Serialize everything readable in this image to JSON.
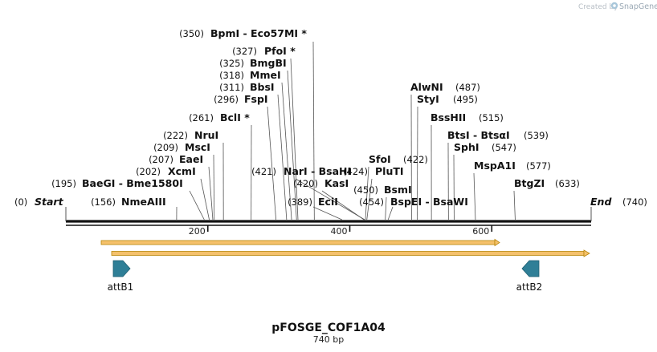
{
  "credit": {
    "prefix": "Created by",
    "brand": "SnapGene"
  },
  "sequence": {
    "name": "pFOSGE_COF1A04",
    "length_label": "740 bp",
    "length": 740
  },
  "ruler": [
    {
      "pos": 200,
      "label": "200"
    },
    {
      "pos": 400,
      "label": "400"
    },
    {
      "pos": 600,
      "label": "600"
    }
  ],
  "ends": {
    "start": {
      "pos_label": "(0)",
      "label": "Start"
    },
    "end": {
      "pos_label": "(740)",
      "label": "End"
    }
  },
  "sites": [
    {
      "pos": 350,
      "pos_label": "(350)",
      "label": "BpmI  - Eco57MI *"
    },
    {
      "pos": 327,
      "pos_label": "(327)",
      "label": "PfoI *"
    },
    {
      "pos": 325,
      "pos_label": "(325)",
      "label": "BmgBI"
    },
    {
      "pos": 318,
      "pos_label": "(318)",
      "label": "MmeI"
    },
    {
      "pos": 311,
      "pos_label": "(311)",
      "label": "BbsI"
    },
    {
      "pos": 296,
      "pos_label": "(296)",
      "label": "FspI"
    },
    {
      "pos": 261,
      "pos_label": "(261)",
      "label": "BclI *"
    },
    {
      "pos": 222,
      "pos_label": "(222)",
      "label": "NruI"
    },
    {
      "pos": 209,
      "pos_label": "(209)",
      "label": "MscI"
    },
    {
      "pos": 207,
      "pos_label": "(207)",
      "label": "EaeI"
    },
    {
      "pos": 202,
      "pos_label": "(202)",
      "label": "XcmI"
    },
    {
      "pos": 195,
      "pos_label": "(195)",
      "label": "BaeGI  - Bme1580I"
    },
    {
      "pos": 156,
      "pos_label": "(156)",
      "label": "NmeAIII"
    },
    {
      "pos": 421,
      "pos_label": "(421)",
      "label": "NarI  - BsaHI"
    },
    {
      "pos": 420,
      "pos_label": "(420)",
      "label": "KasI"
    },
    {
      "pos": 389,
      "pos_label": "(389)",
      "label": "EciI"
    },
    {
      "pos": 422,
      "pos_label": "(422)",
      "label": "SfoI"
    },
    {
      "pos": 424,
      "pos_label": "(424)",
      "label": "PluTI"
    },
    {
      "pos": 450,
      "pos_label": "(450)",
      "label": "BsmI"
    },
    {
      "pos": 454,
      "pos_label": "(454)",
      "label": "BspEI  - BsaWI"
    },
    {
      "pos": 487,
      "pos_label": "(487)",
      "label": "AlwNI"
    },
    {
      "pos": 495,
      "pos_label": "(495)",
      "label": "StyI"
    },
    {
      "pos": 515,
      "pos_label": "(515)",
      "label": "BssHII"
    },
    {
      "pos": 539,
      "pos_label": "(539)",
      "label": "BtsI  - BtsαI"
    },
    {
      "pos": 547,
      "pos_label": "(547)",
      "label": "SphI"
    },
    {
      "pos": 577,
      "pos_label": "(577)",
      "label": "MspA1I"
    },
    {
      "pos": 633,
      "pos_label": "(633)",
      "label": "BtgZI"
    }
  ],
  "features": [
    {
      "name": "attB1",
      "direction": "forward",
      "color": "#2f7f97"
    },
    {
      "name": "attB2",
      "direction": "reverse",
      "color": "#2f7f97"
    }
  ],
  "orfs": [
    {
      "direction": "forward",
      "color": "#f5c16c"
    },
    {
      "direction": "forward",
      "color": "#f5c16c"
    }
  ],
  "colors": {
    "backbone": "#111111",
    "connector": "#555555",
    "orf_stroke": "#b8860b"
  }
}
